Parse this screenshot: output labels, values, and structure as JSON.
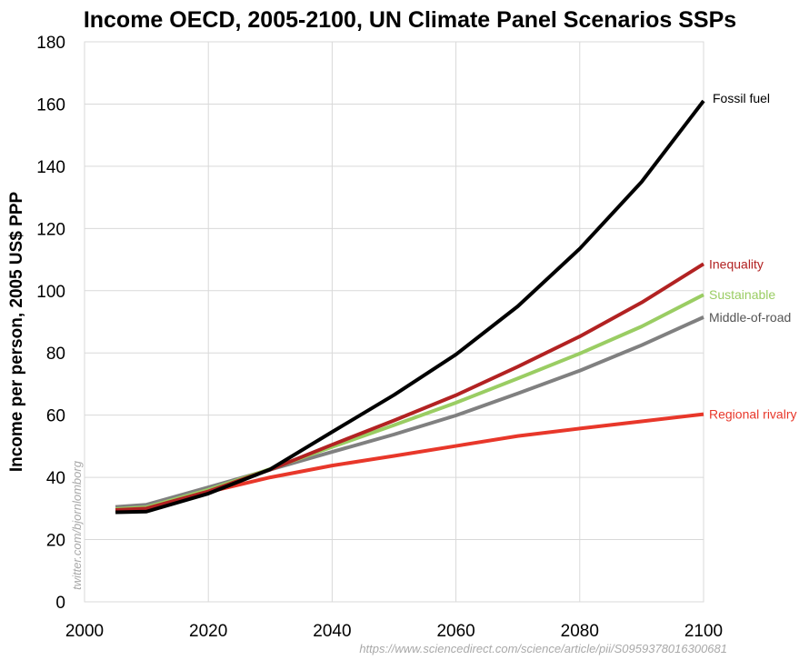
{
  "chart_data": {
    "type": "line",
    "title": "Income OECD, 2005-2100, UN Climate Panel Scenarios SSPs",
    "xlabel": "",
    "ylabel": "Income per person, 2005 US$ PPP",
    "xlim": [
      2000,
      2100
    ],
    "ylim": [
      0,
      180
    ],
    "x_ticks": [
      2000,
      2020,
      2040,
      2060,
      2080,
      2100
    ],
    "y_ticks": [
      0,
      20,
      40,
      60,
      80,
      100,
      120,
      140,
      160,
      180
    ],
    "grid": true,
    "legend": "labels at line ends (right)",
    "x": [
      2005,
      2010,
      2020,
      2030,
      2040,
      2050,
      2060,
      2070,
      2080,
      2090,
      2100
    ],
    "series": [
      {
        "name": "Fossil fuel",
        "color": "#000000",
        "values": [
          28.8,
          29.0,
          34.8,
          42.6,
          54.6,
          66.5,
          79.5,
          95.0,
          113.5,
          135.0,
          161.0
        ]
      },
      {
        "name": "Inequality",
        "color": "#b22222",
        "values": [
          29.5,
          30.0,
          35.5,
          42.5,
          50.5,
          58.3,
          66.4,
          75.6,
          85.3,
          96.2,
          108.6
        ]
      },
      {
        "name": "Sustainable",
        "color": "#9acd63",
        "values": [
          29.8,
          30.4,
          36.0,
          42.7,
          49.8,
          56.8,
          64.0,
          71.8,
          79.8,
          88.5,
          98.7
        ]
      },
      {
        "name": "Middle-of-road",
        "color": "#808080",
        "values": [
          30.5,
          31.2,
          36.8,
          42.5,
          48.2,
          53.8,
          59.9,
          67.0,
          74.3,
          82.5,
          91.5
        ]
      },
      {
        "name": "Regional rivalry",
        "color": "#e8372a",
        "values": [
          29.3,
          29.8,
          35.3,
          40.0,
          43.8,
          46.9,
          50.1,
          53.3,
          55.7,
          58.0,
          60.3
        ]
      }
    ]
  },
  "watermark": "twitter.com/bjornlomborg",
  "source": "https://www.sciencedirect.com/science/article/pii/S0959378016300681"
}
